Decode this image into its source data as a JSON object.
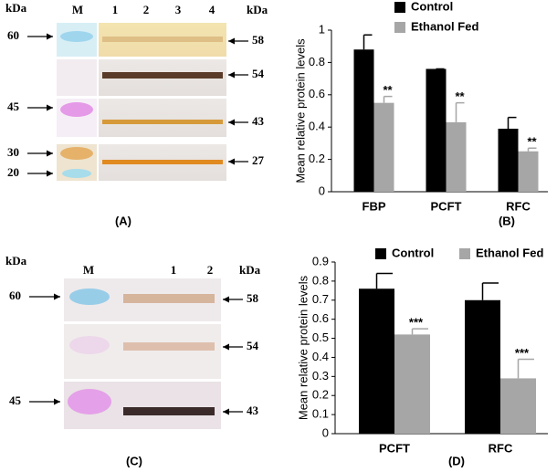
{
  "panels": [
    {
      "caption": "(A)",
      "kda_left": "kDa",
      "kda_right": "kDa",
      "lanes": [
        "M",
        "1",
        "2",
        "3",
        "4"
      ],
      "left_markers": [
        "60",
        "45",
        "30",
        "20"
      ],
      "right_markers": [
        "58",
        "54",
        "43",
        "27"
      ]
    },
    {
      "caption": "(C)",
      "kda_left": "kDa",
      "kda_right": "kDa",
      "lanes": [
        "M",
        "1",
        "2"
      ],
      "left_markers": [
        "60",
        "45"
      ],
      "right_markers": [
        "58",
        "54",
        "43"
      ]
    }
  ],
  "chart_data": [
    {
      "type": "bar",
      "caption": "(B)",
      "y_label": "Mean relative protein levels",
      "categories": [
        "FBP",
        "PCFT",
        "RFC"
      ],
      "series": [
        {
          "name": "Control",
          "color": "#000000",
          "values": [
            0.88,
            0.76,
            0.39
          ],
          "errors": [
            0.09,
            0,
            0.07
          ]
        },
        {
          "name": "Ethanol Fed",
          "color": "#a6a6a6",
          "values": [
            0.55,
            0.43,
            0.25
          ],
          "errors": [
            0.04,
            0.12,
            0.02
          ],
          "annotations": [
            "**",
            "**",
            "**"
          ]
        }
      ],
      "ylim": [
        0,
        1
      ],
      "yticks": [
        0,
        0.2,
        0.4,
        0.6,
        0.8,
        1
      ]
    },
    {
      "type": "bar",
      "caption": "(D)",
      "y_label": "Mean relative protein levels",
      "categories": [
        "PCFT",
        "RFC"
      ],
      "series": [
        {
          "name": "Control",
          "color": "#000000",
          "values": [
            0.76,
            0.7
          ],
          "errors": [
            0.08,
            0.09
          ]
        },
        {
          "name": "Ethanol Fed",
          "color": "#a6a6a6",
          "values": [
            0.52,
            0.29
          ],
          "errors": [
            0.03,
            0.1
          ],
          "annotations": [
            "***",
            "***"
          ]
        }
      ],
      "ylim": [
        0,
        0.9
      ],
      "yticks": [
        0,
        0.1,
        0.2,
        0.3,
        0.4,
        0.5,
        0.6,
        0.7,
        0.8,
        0.9
      ]
    }
  ]
}
